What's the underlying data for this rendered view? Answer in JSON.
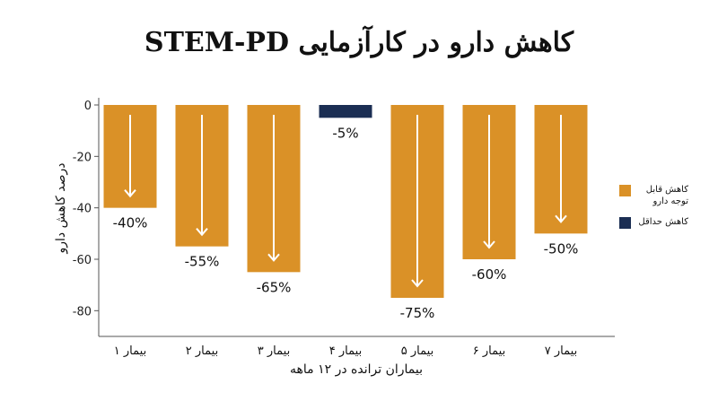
{
  "chart_data": {
    "type": "bar",
    "title": "کاهش دارو در کارآزمایی STEM-PD",
    "ylabel": "درصد کاهش دارو",
    "xlabel": "بیماران ترانده در ۱۲ ماهه",
    "ylim": [
      -90,
      0
    ],
    "yticks": [
      0,
      -20,
      -40,
      -60,
      -80
    ],
    "grid": false,
    "legend_position": "right",
    "categories": [
      "بیمار ۱",
      "بیمار ۲",
      "بیمار ۳",
      "بیمار ۴",
      "بیمار ۵",
      "بیمار ۶",
      "بیمار ۷"
    ],
    "values": [
      -40,
      -55,
      -65,
      -5,
      -75,
      -60,
      -50
    ],
    "value_labels": [
      "-40%",
      "-55%",
      "-65%",
      "-5%",
      "-75%",
      "-60%",
      "-50%"
    ],
    "bar_types": [
      "significant",
      "significant",
      "significant",
      "minimal",
      "significant",
      "significant",
      "significant"
    ],
    "legend": [
      {
        "key": "significant",
        "label": "کاهش قابل توجه دارو",
        "color": "#DA9127"
      },
      {
        "key": "minimal",
        "label": "کاهش حداقل",
        "color": "#1B2E53"
      }
    ],
    "colors": {
      "significant": "#DA9127",
      "minimal": "#1B2E53",
      "arrow": "#ffffff",
      "axis": "#555555"
    }
  }
}
